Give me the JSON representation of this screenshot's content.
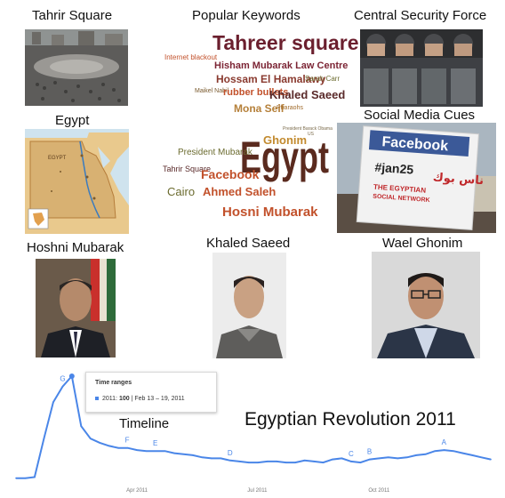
{
  "labels": {
    "tahrir": "Tahrir Square",
    "keywords": "Popular Keywords",
    "csf": "Central Security Force",
    "egypt": "Egypt",
    "social": "Social Media Cues",
    "mubarak": "Hoshni Mubarak",
    "saeed": "Khaled Saeed",
    "ghonim": "Wael Ghonim"
  },
  "cloud1": {
    "w1": "Tahreer square",
    "w2": "Internet blackout",
    "w3": "Hisham Mubarak Law Centre",
    "w4": "Hossam El Hamalawy",
    "w5": "Sarah Carr",
    "w6": "Maikel Nabil",
    "w7": "rubber bullets",
    "w8": "Khaled Saeed",
    "w9": "Mona Seif",
    "w10": "Pharaohs"
  },
  "cloud2": {
    "w1": "Egypt",
    "w2": "Ghonim",
    "w3": "President Barack Obama",
    "w4": "US",
    "w5": "President Mubarak",
    "w6": "Tahrir Square",
    "w7": "Facebook",
    "w8": "Cairo",
    "w9": "Ahmed Saleh",
    "w10": "Hosni Mubarak"
  },
  "map": {
    "title": "EGYPT"
  },
  "sign": {
    "facebook": "Facebook",
    "hashtag": "#jan25",
    "arabic": "ناس بوك",
    "line1": "THE EGYPTIAN",
    "line2": "SOCIAL NETWORK"
  },
  "timeline": {
    "title": "Timeline",
    "main_title": "Egyptian Revolution 2011",
    "tooltip_title": "Time ranges",
    "tooltip_range": "2011:",
    "tooltip_value": "100",
    "tooltip_dates": "| Feb 13 – 19, 2011",
    "x_ticks": [
      "Apr 2011",
      "Jul 2011",
      "Oct 2011"
    ],
    "markers": [
      "G",
      "F",
      "E",
      "D",
      "C",
      "B",
      "A"
    ]
  },
  "chart_data": {
    "type": "line",
    "x": [
      "2011-01-02",
      "2011-01-09",
      "2011-01-16",
      "2011-01-23",
      "2011-01-30",
      "2011-02-06",
      "2011-02-13",
      "2011-02-20",
      "2011-02-27",
      "2011-03-06",
      "2011-03-13",
      "2011-03-20",
      "2011-03-27",
      "2011-04-03",
      "2011-04-10",
      "2011-04-17",
      "2011-04-24",
      "2011-05-01",
      "2011-05-08",
      "2011-05-15",
      "2011-05-22",
      "2011-05-29",
      "2011-06-05",
      "2011-06-12",
      "2011-06-19",
      "2011-06-26",
      "2011-07-03",
      "2011-07-10",
      "2011-07-17",
      "2011-07-24",
      "2011-07-31",
      "2011-08-07",
      "2011-08-14",
      "2011-08-21",
      "2011-08-28",
      "2011-09-04",
      "2011-09-11",
      "2011-09-18",
      "2011-09-25",
      "2011-10-02",
      "2011-10-09",
      "2011-10-16",
      "2011-10-23",
      "2011-10-30",
      "2011-11-06",
      "2011-11-13",
      "2011-11-20",
      "2011-11-27",
      "2011-12-04",
      "2011-12-11",
      "2011-12-18",
      "2011-12-25"
    ],
    "series": [
      {
        "values": [
          2,
          2,
          3,
          40,
          75,
          90,
          100,
          52,
          40,
          36,
          33,
          31,
          31,
          29,
          28,
          28,
          28,
          26,
          25,
          24,
          22,
          21,
          21,
          19,
          18,
          17,
          17,
          18,
          18,
          17,
          17,
          19,
          18,
          17,
          20,
          21,
          18,
          17,
          20,
          21,
          22,
          21,
          22,
          24,
          25,
          28,
          29,
          28,
          26,
          24,
          22,
          20
        ]
      }
    ],
    "markers": [
      {
        "label": "G",
        "x": "2011-02-06"
      },
      {
        "label": "F",
        "x": "2011-03-27"
      },
      {
        "label": "E",
        "x": "2011-04-17"
      },
      {
        "label": "D",
        "x": "2011-06-12"
      },
      {
        "label": "C",
        "x": "2011-09-11"
      },
      {
        "label": "B",
        "x": "2011-09-25"
      },
      {
        "label": "A",
        "x": "2011-11-20"
      }
    ],
    "x_ticks": [
      "Apr 2011",
      "Jul 2011",
      "Oct 2011"
    ],
    "grid": false,
    "color": "#4a86e8"
  }
}
